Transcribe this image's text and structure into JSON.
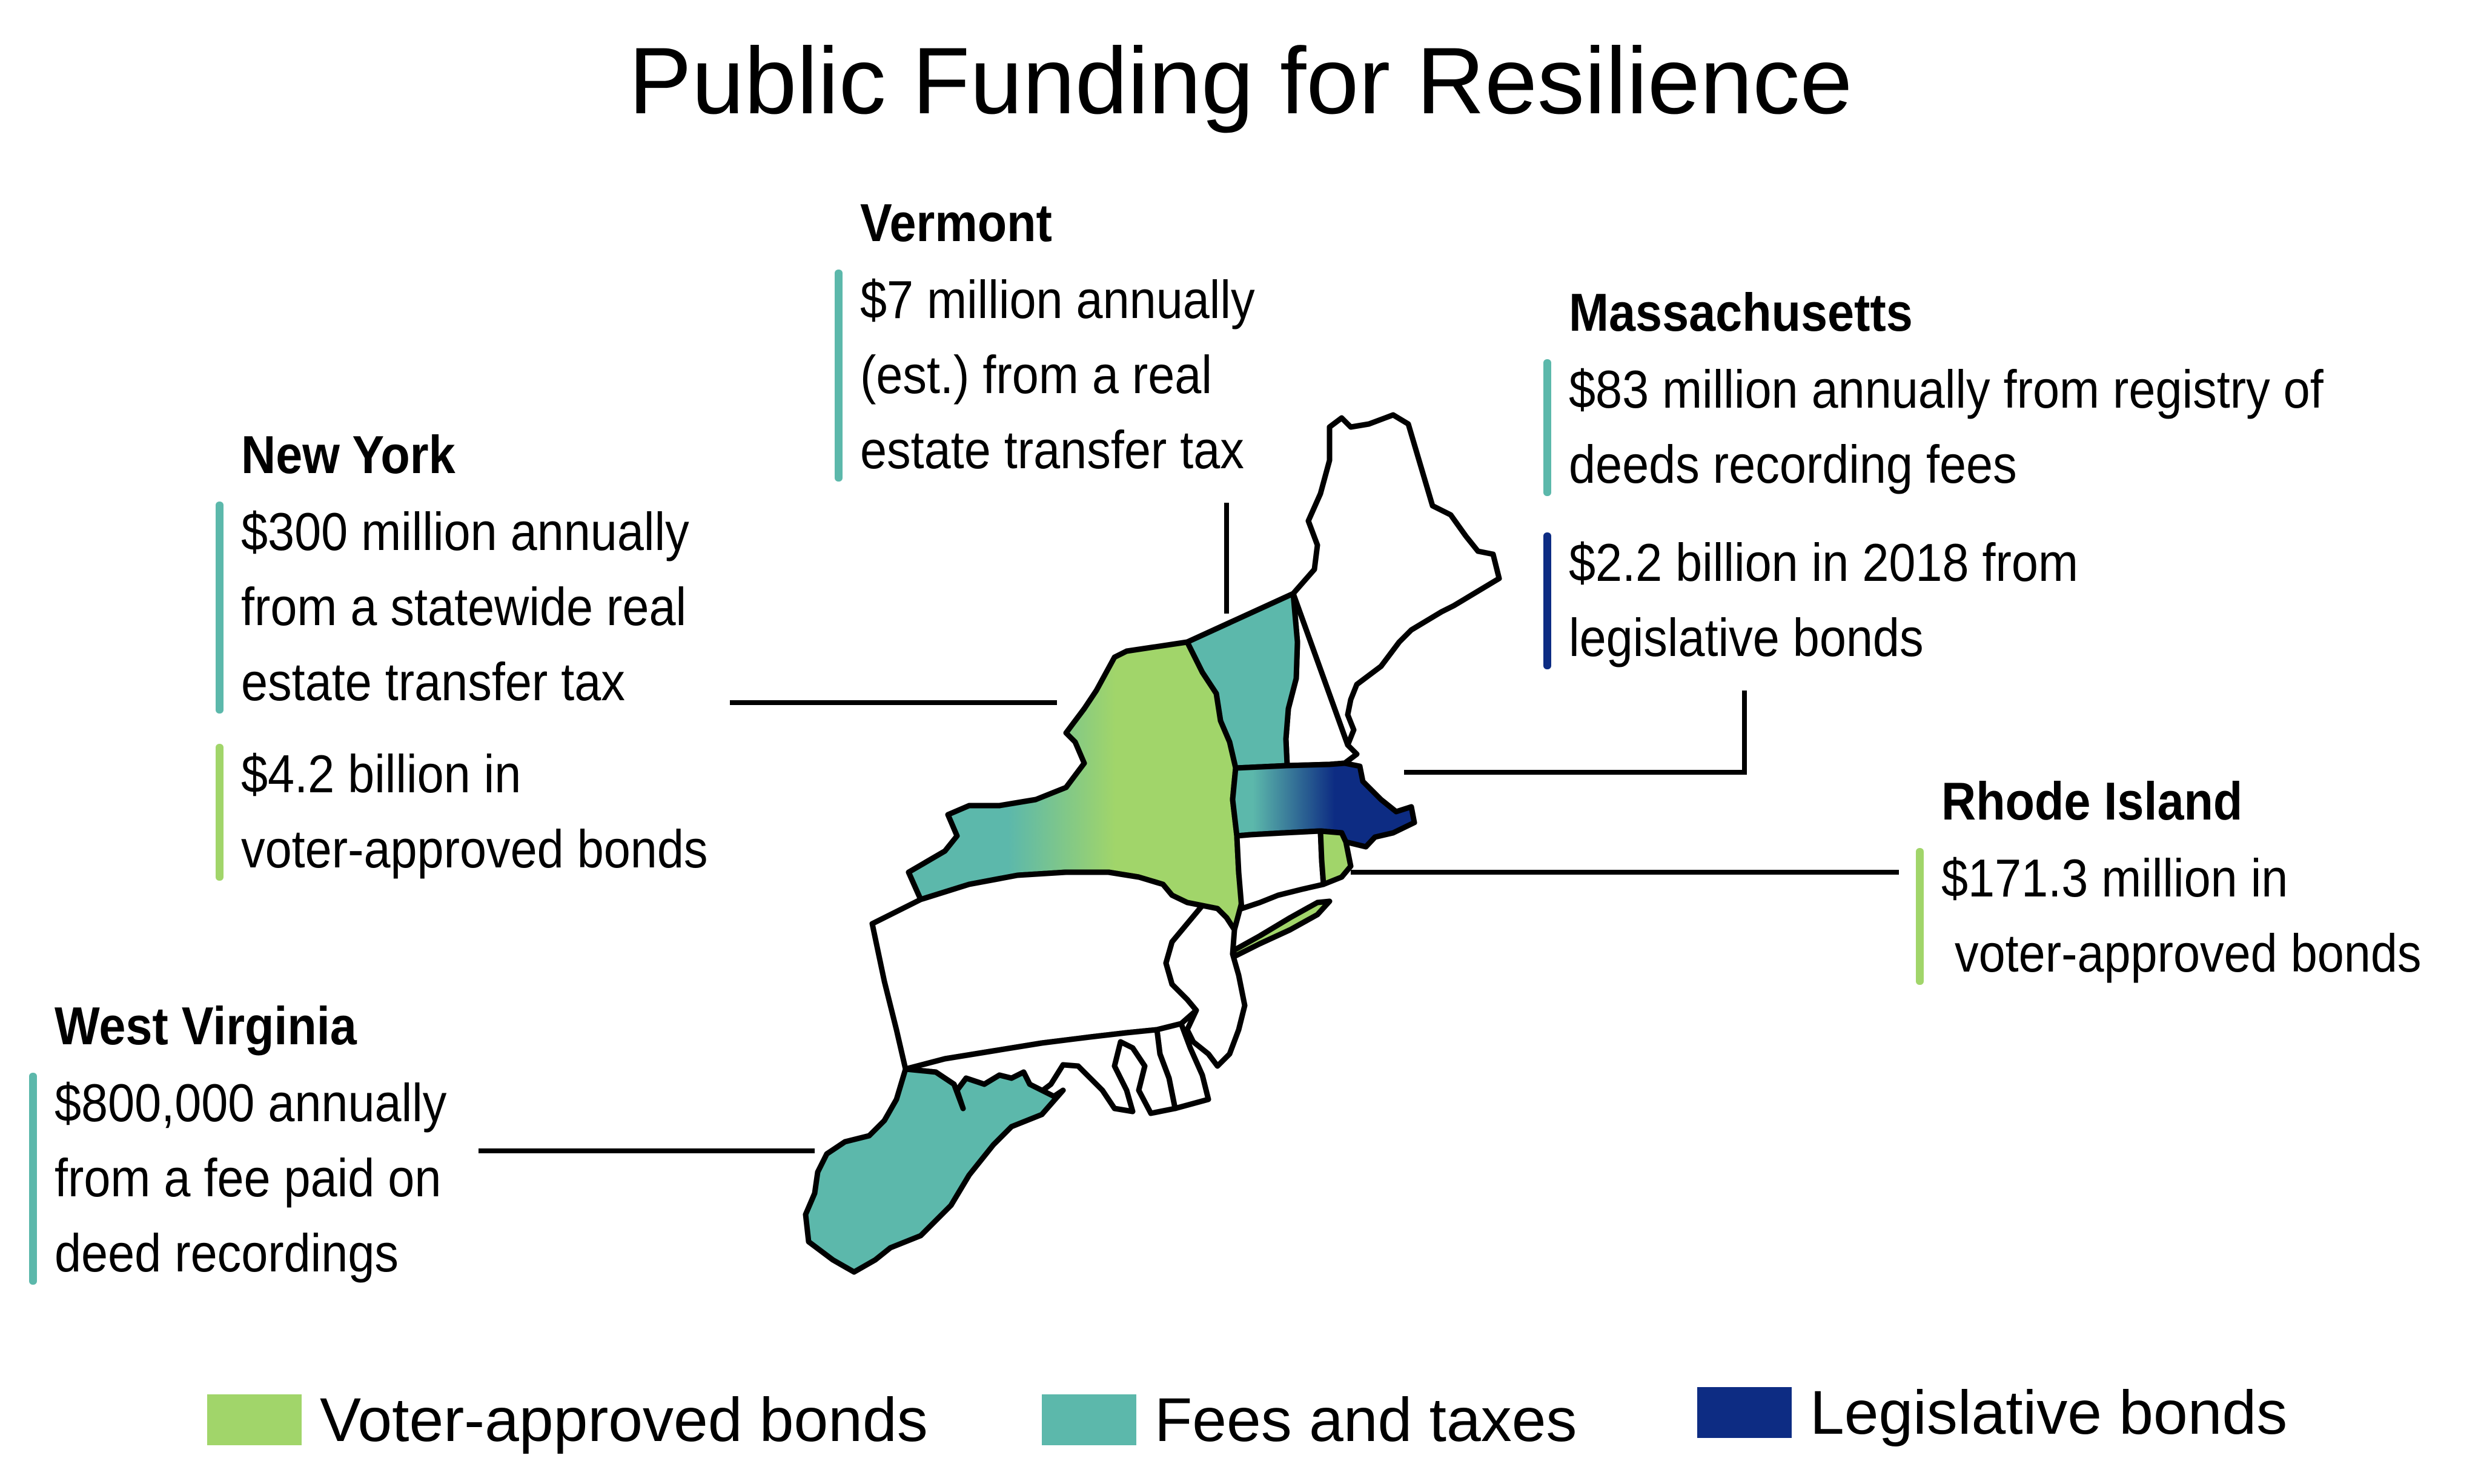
{
  "title": "Public Funding for Resilience",
  "colors": {
    "voter_bonds": "#a1d56a",
    "fees_taxes": "#5cb8ab",
    "legislative_bonds": "#0d2c83",
    "outline": "#000000"
  },
  "states": {
    "vermont": {
      "name": "Vermont",
      "entries": [
        {
          "type": "fees_taxes",
          "lines": [
            "$7 million annually",
            "(est.) from a real",
            "estate transfer tax"
          ]
        }
      ]
    },
    "massachusetts": {
      "name": "Massachusetts",
      "entries": [
        {
          "type": "fees_taxes",
          "lines": [
            "$83 million annually from registry of",
            "deeds recording fees"
          ]
        },
        {
          "type": "legislative_bonds",
          "lines": [
            "$2.2 billion in 2018 from",
            "legislative bonds"
          ]
        }
      ]
    },
    "new_york": {
      "name": "New York",
      "entries": [
        {
          "type": "fees_taxes",
          "lines": [
            "$300 million annually",
            "from a statewide real",
            "estate transfer tax"
          ]
        },
        {
          "type": "voter_bonds",
          "lines": [
            "$4.2 billion in",
            "voter-approved bonds"
          ]
        }
      ]
    },
    "rhode_island": {
      "name": "Rhode Island",
      "entries": [
        {
          "type": "voter_bonds",
          "lines": [
            "$171.3 million in",
            " voter-approved bonds"
          ]
        }
      ]
    },
    "west_virginia": {
      "name": "West Virginia",
      "entries": [
        {
          "type": "fees_taxes",
          "lines": [
            "$800,000 annually",
            "from a fee paid on",
            "deed recordings"
          ]
        }
      ]
    }
  },
  "legend": [
    {
      "key": "voter_bonds",
      "label": "Voter-approved bonds"
    },
    {
      "key": "fees_taxes",
      "label": "Fees and taxes"
    },
    {
      "key": "legislative_bonds",
      "label": "Legislative bonds"
    }
  ]
}
